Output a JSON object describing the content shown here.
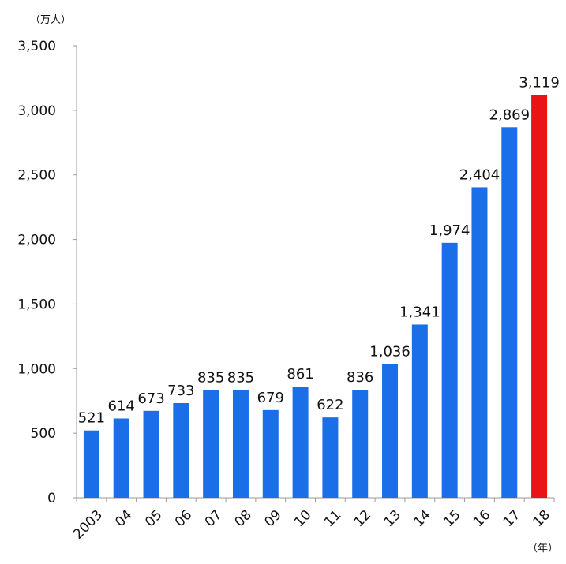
{
  "chart_data": {
    "type": "bar",
    "title": "",
    "xlabel": "",
    "ylabel": "",
    "y_unit_label": "（万人）",
    "x_unit_label": "（年）",
    "categories": [
      "2003",
      "04",
      "05",
      "06",
      "07",
      "08",
      "09",
      "10",
      "11",
      "12",
      "13",
      "14",
      "15",
      "16",
      "17",
      "18"
    ],
    "values": [
      521,
      614,
      673,
      733,
      835,
      835,
      679,
      861,
      622,
      836,
      1036,
      1341,
      1974,
      2404,
      2869,
      3119
    ],
    "data_labels": [
      "521",
      "614",
      "673",
      "733",
      "835",
      "835",
      "679",
      "861",
      "622",
      "836",
      "1,036",
      "1,341",
      "1,974",
      "2,404",
      "2,869",
      "3,119"
    ],
    "ylim": [
      0,
      3500
    ],
    "yticks": [
      0,
      500,
      1000,
      1500,
      2000,
      2500,
      3000,
      3500
    ],
    "ytick_labels": [
      "0",
      "500",
      "1,000",
      "1,500",
      "2,000",
      "2,500",
      "3,000",
      "3,500"
    ],
    "grid": false,
    "legend": "none",
    "colors": {
      "bar": "#1a6ee8",
      "highlight_bar": "#e81416",
      "axis": "#9a9a9a"
    },
    "highlight_index": 15
  }
}
